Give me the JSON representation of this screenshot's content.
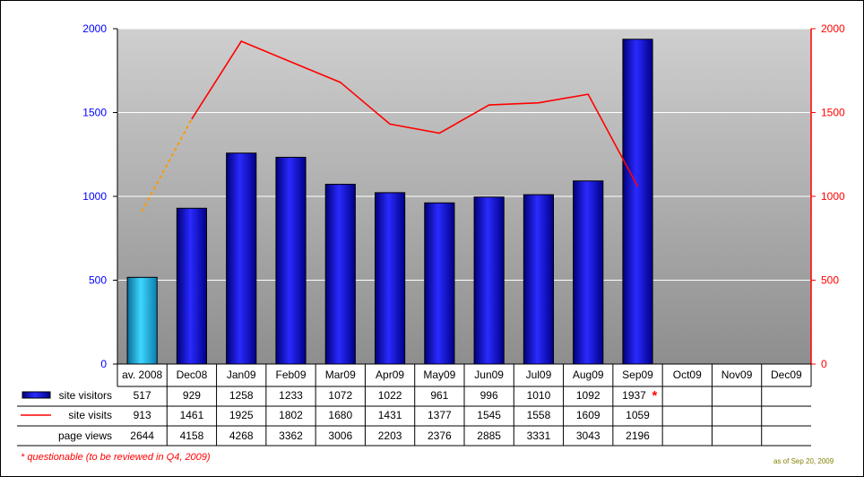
{
  "chart_data": {
    "type": "bar",
    "categories": [
      "av. 2008",
      "Dec08",
      "Jan09",
      "Feb09",
      "Mar09",
      "Apr09",
      "May09",
      "Jun09",
      "Jul09",
      "Aug09",
      "Sep09",
      "Oct09",
      "Nov09",
      "Dec09"
    ],
    "series": [
      {
        "name": "site visitors",
        "kind": "bar",
        "axis": "left",
        "values": [
          517,
          929,
          1258,
          1233,
          1072,
          1022,
          961,
          996,
          1010,
          1092,
          1937,
          null,
          null,
          null
        ],
        "color": "#1010d8",
        "highlight_color": "#18b8e8"
      },
      {
        "name": "site visits",
        "kind": "line",
        "axis": "right",
        "values": [
          913,
          1461,
          1925,
          1802,
          1680,
          1431,
          1377,
          1545,
          1558,
          1609,
          1059,
          null,
          null,
          null
        ],
        "color": "#ff0000",
        "dotted_color": "#ff9900"
      },
      {
        "name": "page views",
        "kind": "table-only",
        "values": [
          2644,
          4158,
          4268,
          3362,
          3006,
          2203,
          2376,
          2885,
          3331,
          3043,
          2196,
          null,
          null,
          null
        ]
      }
    ],
    "left_axis": {
      "ylim": [
        0,
        2000
      ],
      "ticks": [
        "0",
        "500",
        "1000",
        "1500",
        "2000"
      ],
      "color": "#0000ff"
    },
    "right_axis": {
      "ylim": [
        0,
        2000
      ],
      "ticks": [
        "0",
        "500",
        "1000",
        "1500",
        "2000"
      ],
      "color": "#ff0000"
    },
    "grid": true,
    "table_labels": [
      "site visitors",
      "site visits",
      "page views"
    ],
    "cell_marker": {
      "text": "*",
      "series": 0,
      "category": 10,
      "color": "#ff0000"
    }
  },
  "footnote": {
    "text": "* questionable (to be reviewed in Q4, 2009)",
    "color": "#ff0000"
  },
  "as_of": {
    "text": "as of Sep 20, 2009",
    "color": "#808000"
  }
}
